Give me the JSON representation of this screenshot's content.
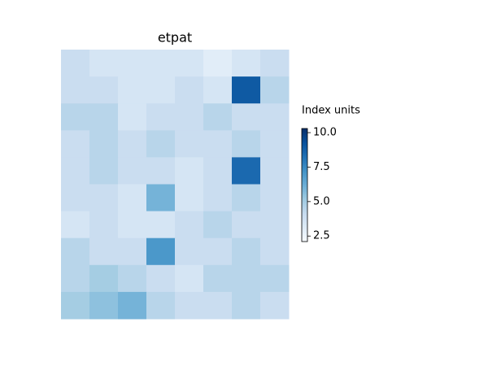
{
  "chart_data": {
    "type": "heatmap",
    "title": "etpat",
    "colorbar_label": "Index units",
    "cmap": [
      "#f7fbff",
      "#deebf7",
      "#c6dbef",
      "#9ecae1",
      "#6baed6",
      "#4292c6",
      "#2171b5",
      "#08519c",
      "#08306b"
    ],
    "clim": [
      2.1,
      10.3
    ],
    "cticks": [
      2.5,
      {
        "value": 5,
        "label": "5.0"
      },
      7.5,
      {
        "value": 10,
        "label": "10.0"
      }
    ],
    "z": [
      [
        4,
        3.5,
        3.5,
        3.5,
        3.5,
        3,
        3.5,
        4
      ],
      [
        4,
        4,
        3.5,
        3.5,
        4,
        3.5,
        9,
        4.5
      ],
      [
        4.5,
        4.5,
        3.5,
        4,
        4,
        4.5,
        4,
        4
      ],
      [
        4,
        4.5,
        4,
        4.5,
        4,
        4,
        4.5,
        4
      ],
      [
        4,
        4.5,
        4,
        4,
        3.5,
        4,
        8.5,
        4
      ],
      [
        4,
        4,
        3.5,
        6,
        3.5,
        4,
        4.5,
        4
      ],
      [
        3.5,
        4,
        3.5,
        3.5,
        4,
        4.5,
        4,
        4
      ],
      [
        4.5,
        4,
        4,
        7,
        4,
        4,
        4.5,
        4
      ],
      [
        4.5,
        5,
        4.5,
        4,
        3.5,
        4.5,
        4.5,
        4.5
      ],
      [
        5,
        5.5,
        6,
        4.5,
        4,
        4,
        4.5,
        4
      ]
    ]
  }
}
